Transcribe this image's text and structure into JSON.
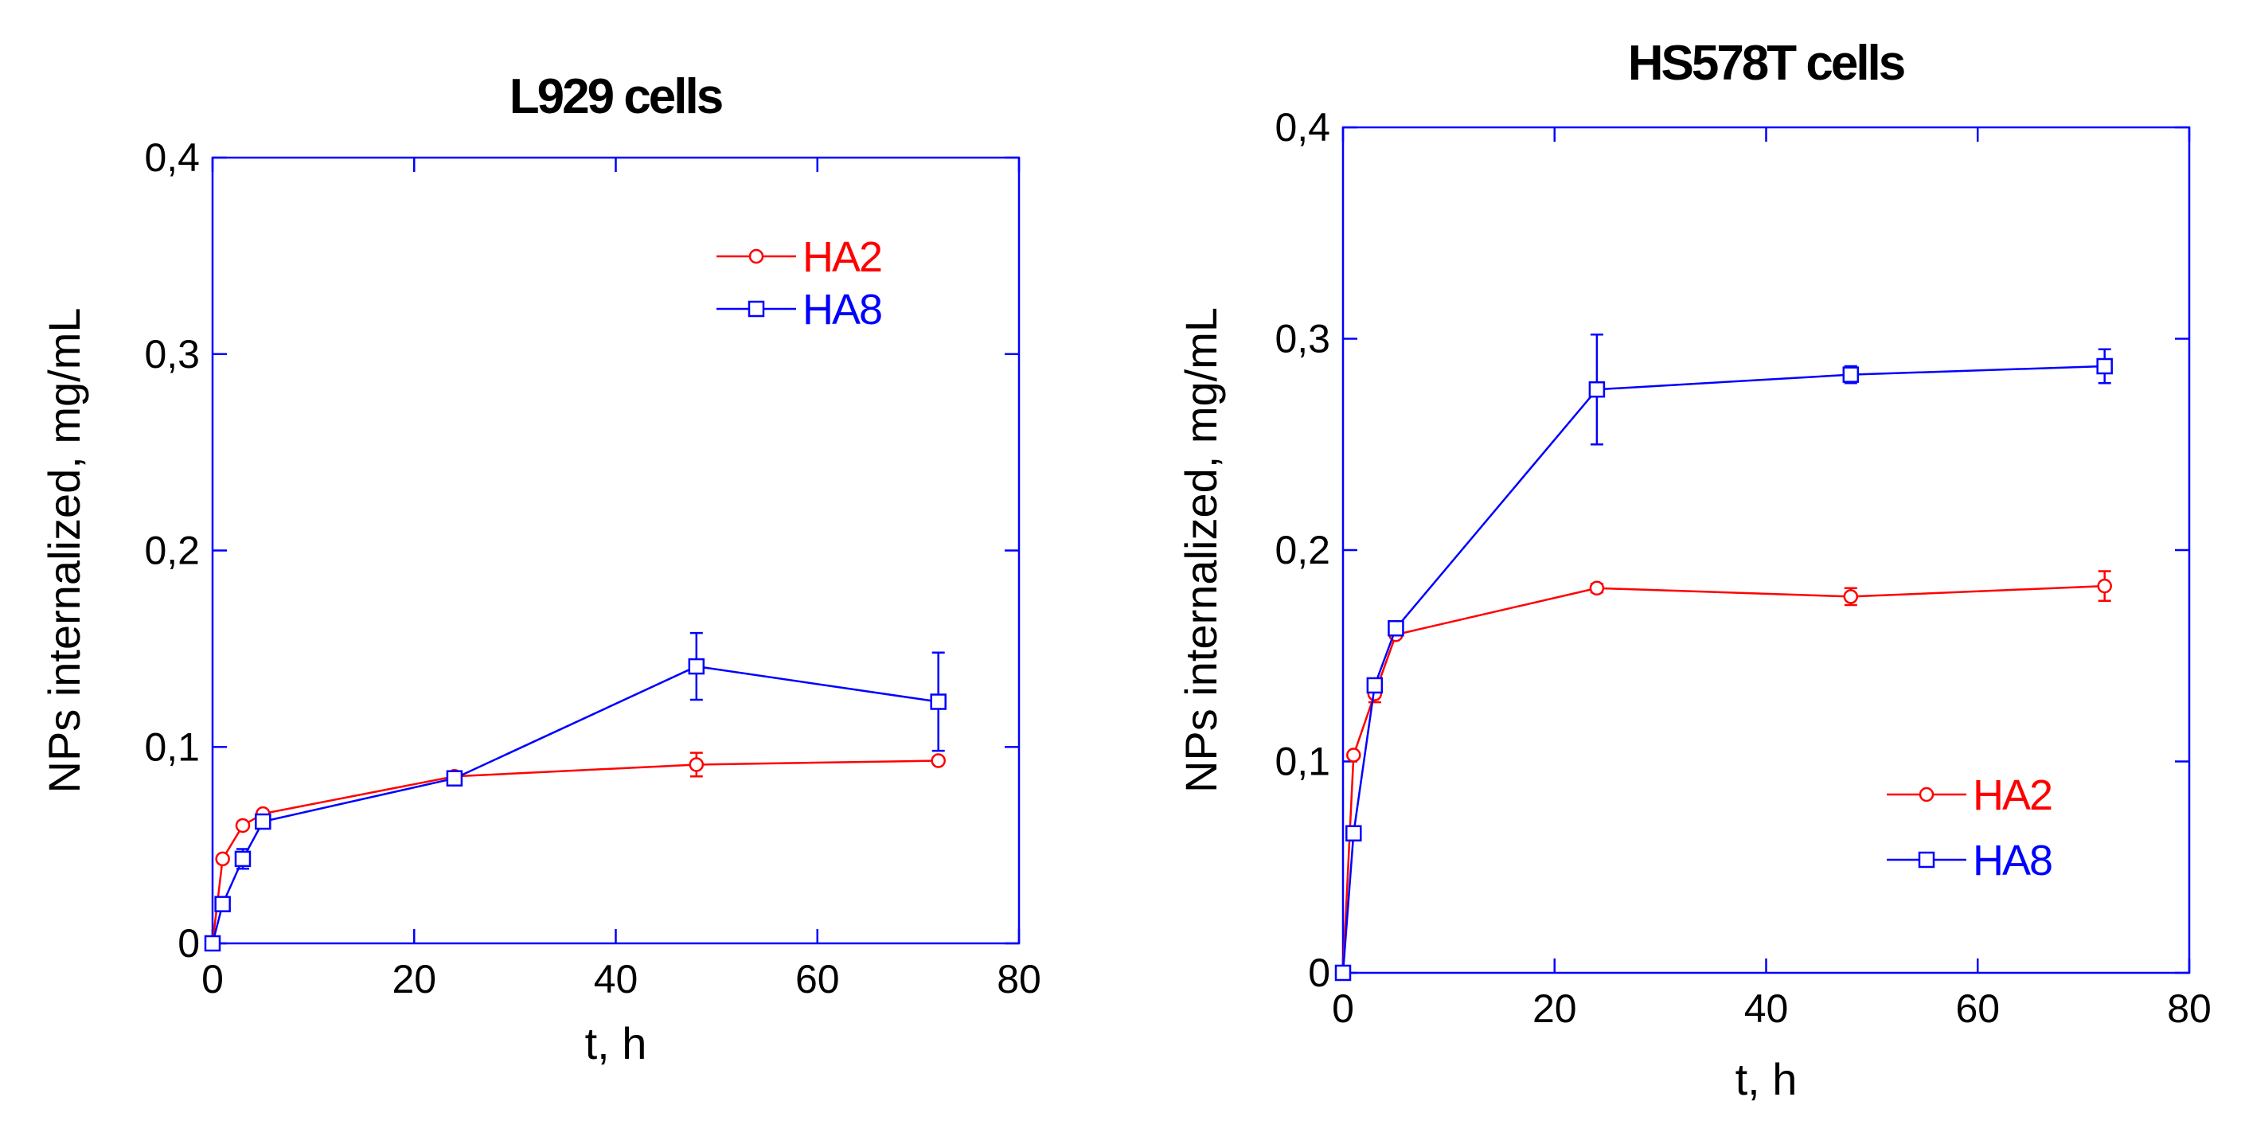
{
  "chart_data": [
    {
      "type": "line",
      "title": "L929 cells",
      "xlabel": "t, h",
      "ylabel": "NPs internalized, mg/mL",
      "xlim": [
        0,
        80
      ],
      "ylim": [
        0,
        0.4
      ],
      "xticks": [
        0,
        20,
        40,
        60,
        80
      ],
      "yticks": [
        0,
        0.1,
        0.2,
        0.3,
        0.4
      ],
      "xtick_labels": [
        "0",
        "20",
        "40",
        "60",
        "80"
      ],
      "ytick_labels": [
        "0",
        "0,1",
        "0,2",
        "0,3",
        "0,4"
      ],
      "legend_position": "top-right",
      "series": [
        {
          "name": "HA2",
          "color": "#ff0000",
          "marker": "circle",
          "x": [
            0,
            1,
            3,
            5,
            24,
            48,
            72
          ],
          "y": [
            0,
            0.043,
            0.06,
            0.066,
            0.085,
            0.091,
            0.093
          ],
          "err": [
            0,
            0,
            0,
            0,
            0,
            0.006,
            0
          ]
        },
        {
          "name": "HA8",
          "color": "#0000ff",
          "marker": "square",
          "x": [
            0,
            1,
            3,
            5,
            24,
            48,
            72
          ],
          "y": [
            0,
            0.02,
            0.043,
            0.062,
            0.084,
            0.141,
            0.123
          ],
          "err": [
            0,
            0,
            0.005,
            0,
            0,
            0.017,
            0.025
          ]
        }
      ]
    },
    {
      "type": "line",
      "title": "HS578T cells",
      "xlabel": "t, h",
      "ylabel": "NPs internalized, mg/mL",
      "xlim": [
        0,
        80
      ],
      "ylim": [
        0,
        0.4
      ],
      "xticks": [
        0,
        20,
        40,
        60,
        80
      ],
      "yticks": [
        0,
        0.1,
        0.2,
        0.3,
        0.4
      ],
      "xtick_labels": [
        "0",
        "20",
        "40",
        "60",
        "80"
      ],
      "ytick_labels": [
        "0",
        "0,1",
        "0,2",
        "0,3",
        "0,4"
      ],
      "legend_position": "bottom-right",
      "series": [
        {
          "name": "HA2",
          "color": "#ff0000",
          "marker": "circle",
          "x": [
            0,
            1,
            3,
            5,
            24,
            48,
            72
          ],
          "y": [
            0,
            0.103,
            0.132,
            0.16,
            0.182,
            0.178,
            0.183
          ],
          "err": [
            0,
            0,
            0.004,
            0,
            0.002,
            0.004,
            0.007
          ]
        },
        {
          "name": "HA8",
          "color": "#0000ff",
          "marker": "square",
          "x": [
            0,
            1,
            3,
            5,
            24,
            48,
            72
          ],
          "y": [
            0,
            0.066,
            0.136,
            0.163,
            0.276,
            0.283,
            0.287
          ],
          "err": [
            0,
            0,
            0,
            0,
            0.026,
            0.004,
            0.008
          ]
        }
      ]
    }
  ]
}
